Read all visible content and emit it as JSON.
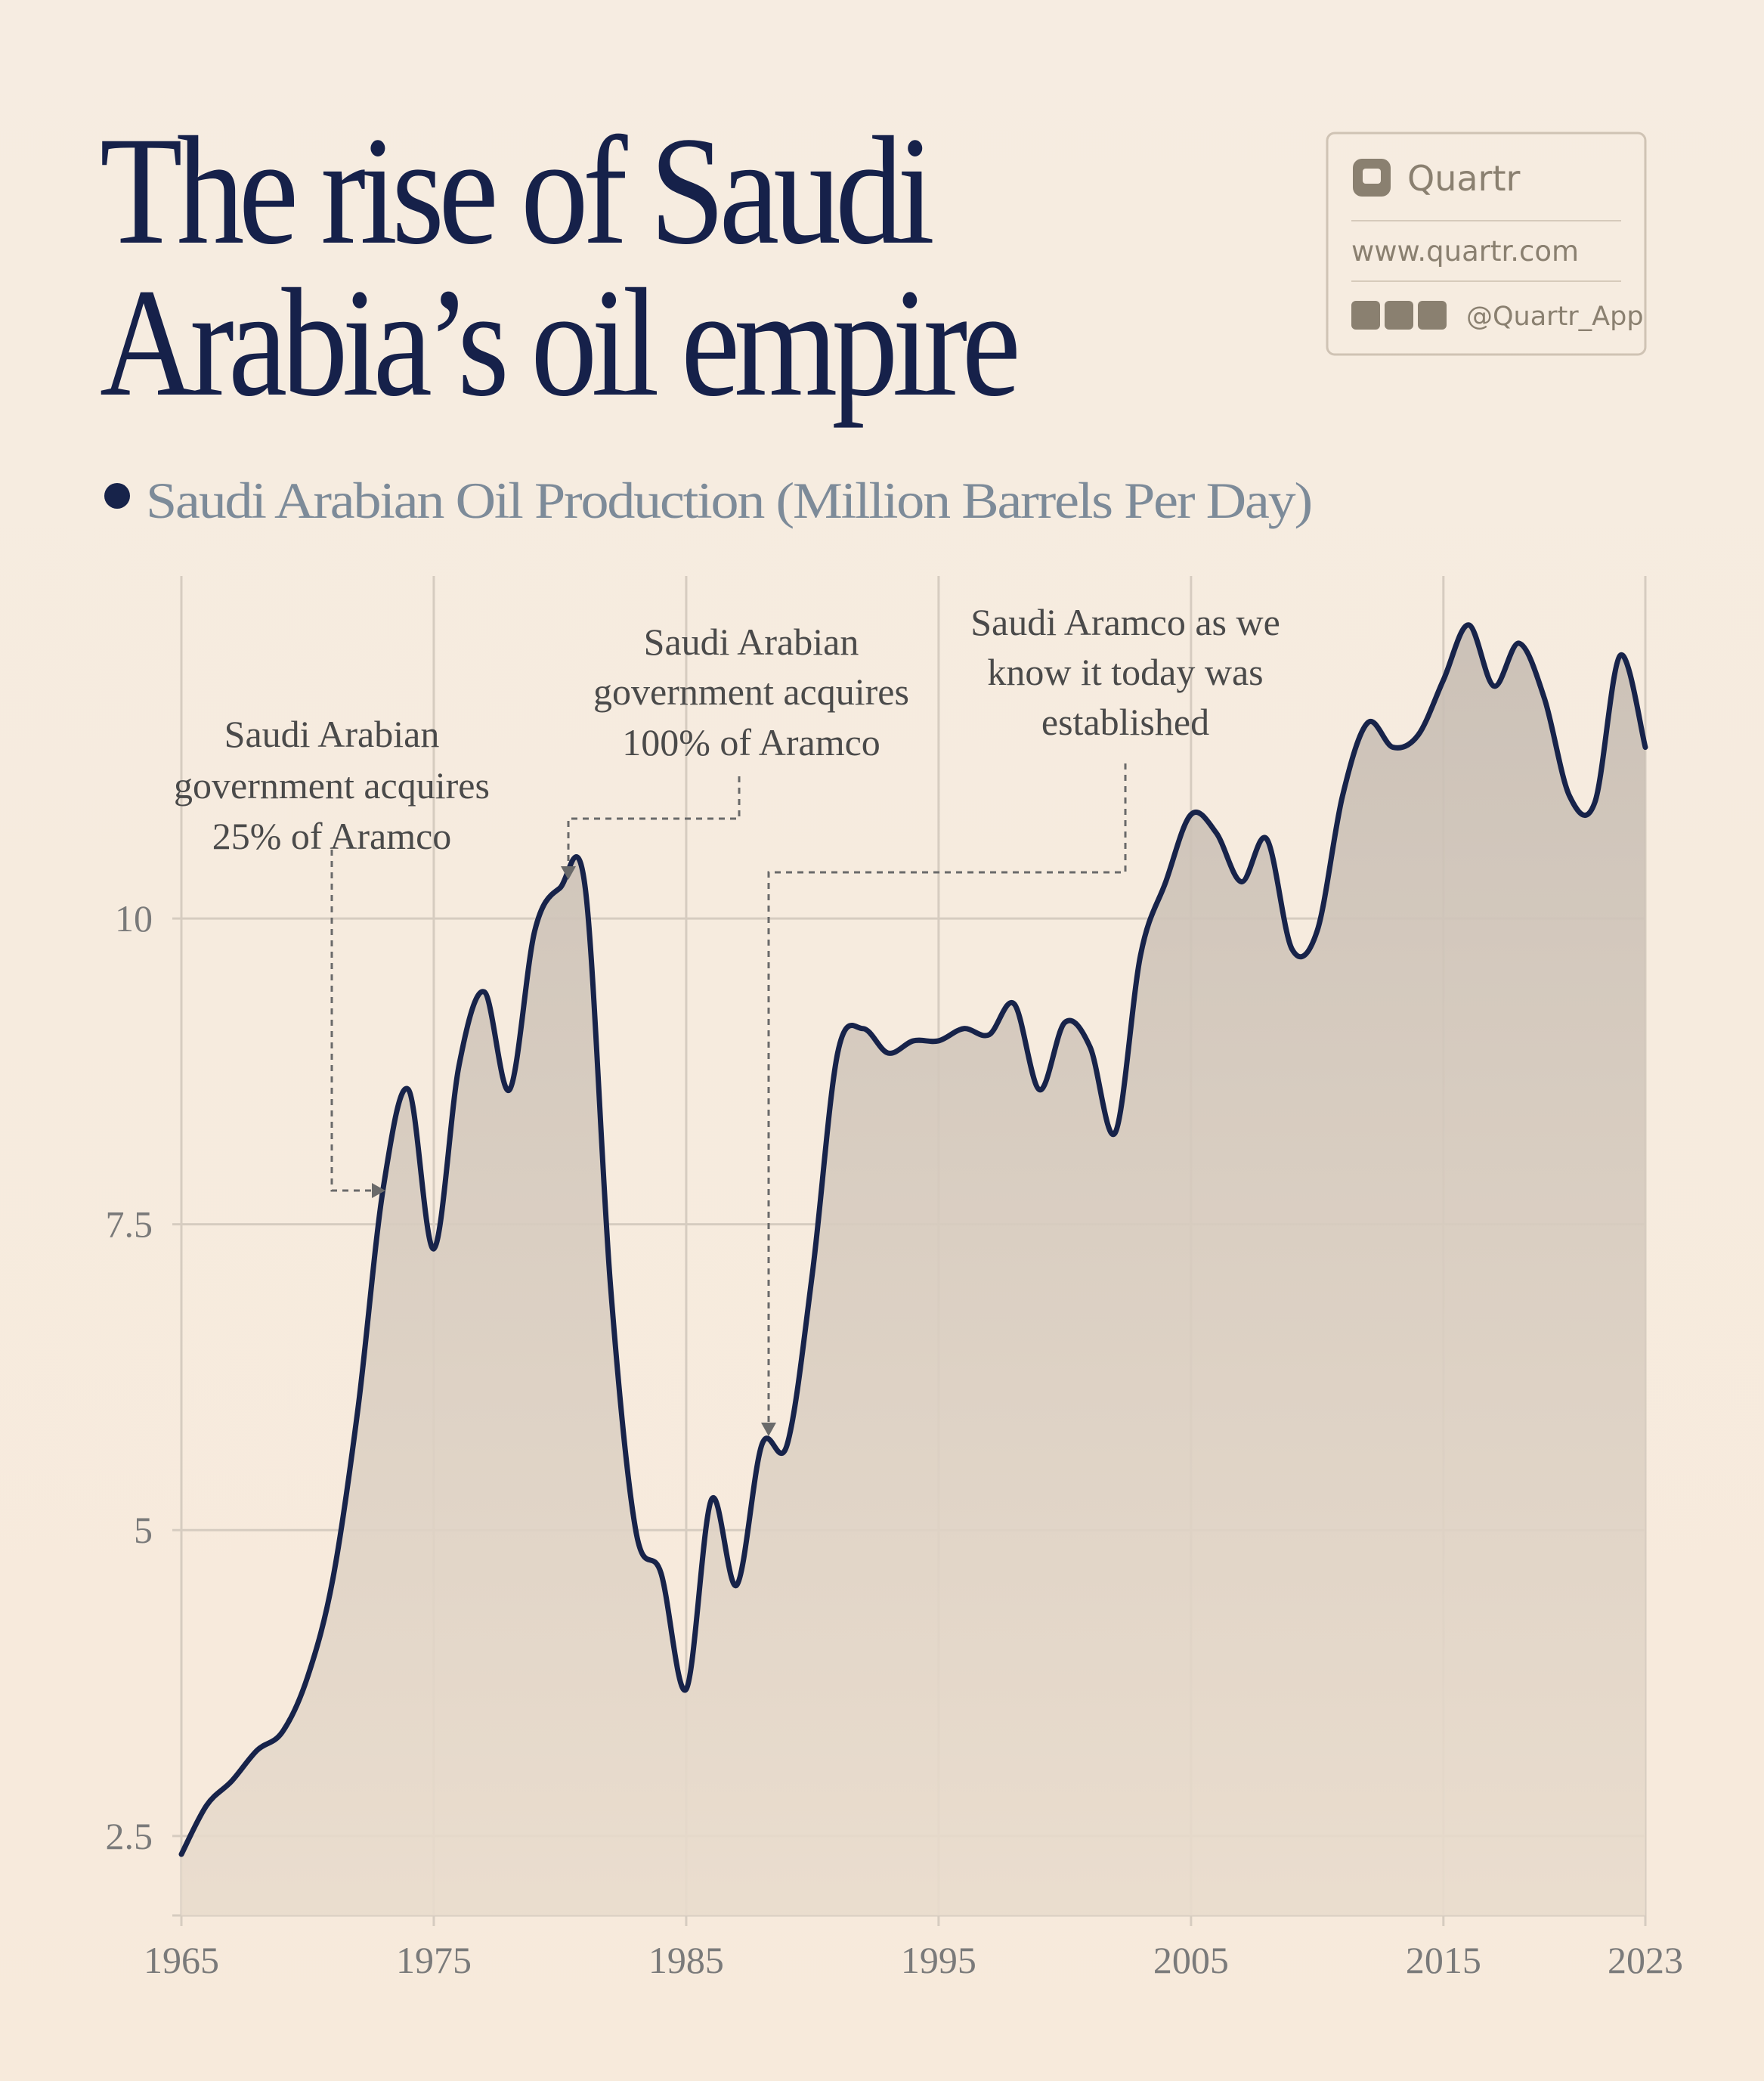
{
  "chart_data": {
    "type": "line",
    "title": [
      "The rise of Saudi",
      "Arabia’s oil empire"
    ],
    "x": [
      1965,
      1966,
      1967,
      1968,
      1969,
      1970,
      1971,
      1972,
      1973,
      1974,
      1975,
      1976,
      1977,
      1978,
      1979,
      1980,
      1981,
      1982,
      1983,
      1984,
      1985,
      1986,
      1987,
      1988,
      1989,
      1990,
      1991,
      1992,
      1993,
      1994,
      1995,
      1996,
      1997,
      1998,
      1999,
      2000,
      2001,
      2002,
      2003,
      2004,
      2005,
      2006,
      2007,
      2008,
      2009,
      2010,
      2011,
      2012,
      2013,
      2014,
      2015,
      2016,
      2017,
      2018,
      2019,
      2020,
      2021,
      2022,
      2023
    ],
    "series": [
      {
        "name": "Saudi Arabian Oil Production (Million Barrels Per Day)",
        "color": "#17234a",
        "values": [
          2.35,
          2.75,
          2.95,
          3.2,
          3.35,
          3.8,
          4.6,
          6.0,
          7.8,
          8.6,
          7.3,
          8.8,
          9.4,
          8.6,
          9.9,
          10.25,
          10.25,
          7.0,
          5.0,
          4.65,
          3.7,
          5.25,
          4.55,
          5.7,
          5.7,
          7.1,
          8.9,
          9.1,
          8.9,
          9.0,
          9.0,
          9.1,
          9.05,
          9.3,
          8.6,
          9.15,
          8.95,
          8.25,
          9.7,
          10.3,
          10.85,
          10.7,
          10.3,
          10.65,
          9.75,
          9.9,
          11.0,
          11.6,
          11.4,
          11.5,
          11.95,
          12.4,
          11.9,
          12.25,
          11.8,
          11.0,
          10.95,
          12.15,
          11.4
        ]
      }
    ],
    "xlim": [
      1965,
      2023
    ],
    "xticks": [
      1965,
      1975,
      1985,
      1995,
      2005,
      2015,
      2023
    ],
    "ylim": [
      1.85,
      12.8
    ],
    "yticks": [
      2.5,
      5,
      7.5,
      10
    ],
    "grid": true,
    "annotations": [
      {
        "text": [
          "Saudi Arabian",
          "government acquires",
          "25% of Aramco"
        ]
      },
      {
        "text": [
          "Saudi Arabian",
          "government acquires",
          "100% of Aramco"
        ]
      },
      {
        "text": [
          "Saudi Aramco as we",
          "know it today was",
          "established"
        ]
      }
    ]
  },
  "branding": {
    "name": "Quartr",
    "website": "www.quartr.com",
    "handle": "@Quartr_App"
  }
}
